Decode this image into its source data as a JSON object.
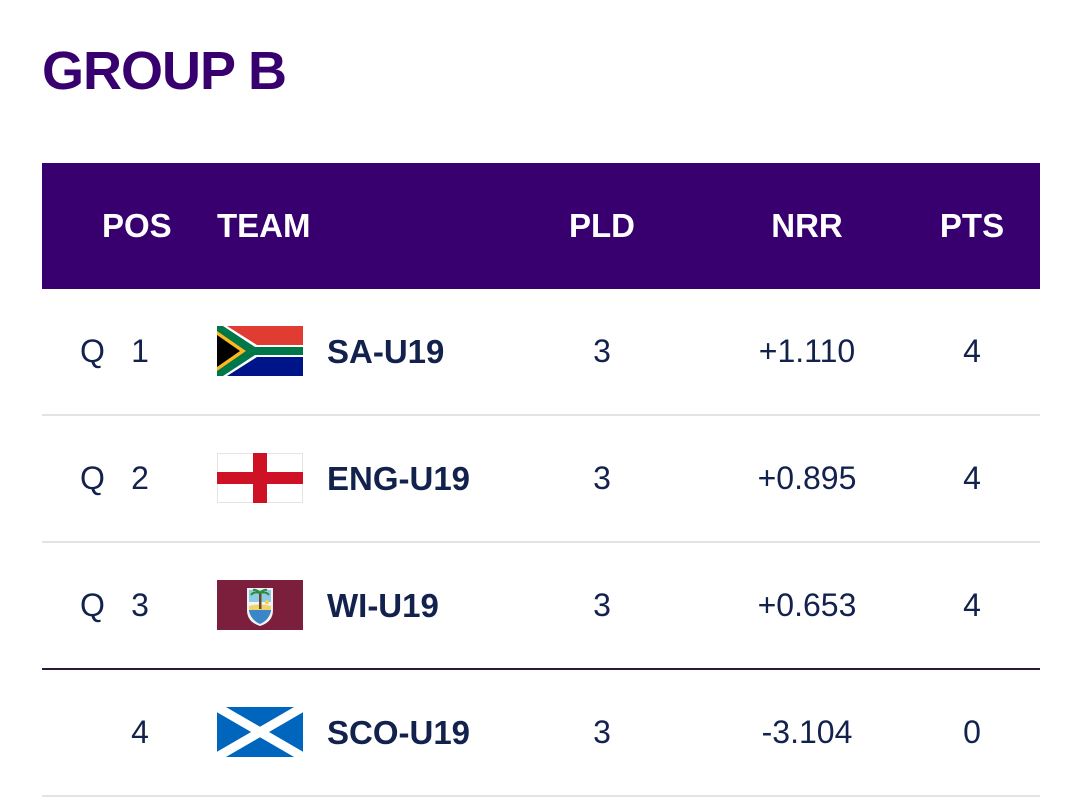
{
  "group": {
    "title": "GROUP B"
  },
  "table": {
    "headers": {
      "pos": "POS",
      "team": "TEAM",
      "pld": "PLD",
      "nrr": "NRR",
      "pts": "PTS"
    },
    "rows": [
      {
        "qualified": "Q",
        "pos": "1",
        "flag": "south-africa-flag",
        "team": "SA-U19",
        "pld": "3",
        "nrr": "+1.110",
        "pts": "4"
      },
      {
        "qualified": "Q",
        "pos": "2",
        "flag": "england-flag",
        "team": "ENG-U19",
        "pld": "3",
        "nrr": "+0.895",
        "pts": "4"
      },
      {
        "qualified": "Q",
        "pos": "3",
        "flag": "west-indies-flag",
        "team": "WI-U19",
        "pld": "3",
        "nrr": "+0.653",
        "pts": "4"
      },
      {
        "qualified": "",
        "pos": "4",
        "flag": "scotland-flag",
        "team": "SCO-U19",
        "pld": "3",
        "nrr": "-3.104",
        "pts": "0"
      }
    ]
  },
  "colors": {
    "header_bg": "#37006e",
    "title": "#37006e",
    "text": "#13224d",
    "divider": "#e3e3e6",
    "cutoff_line": "#2a1a3e"
  }
}
